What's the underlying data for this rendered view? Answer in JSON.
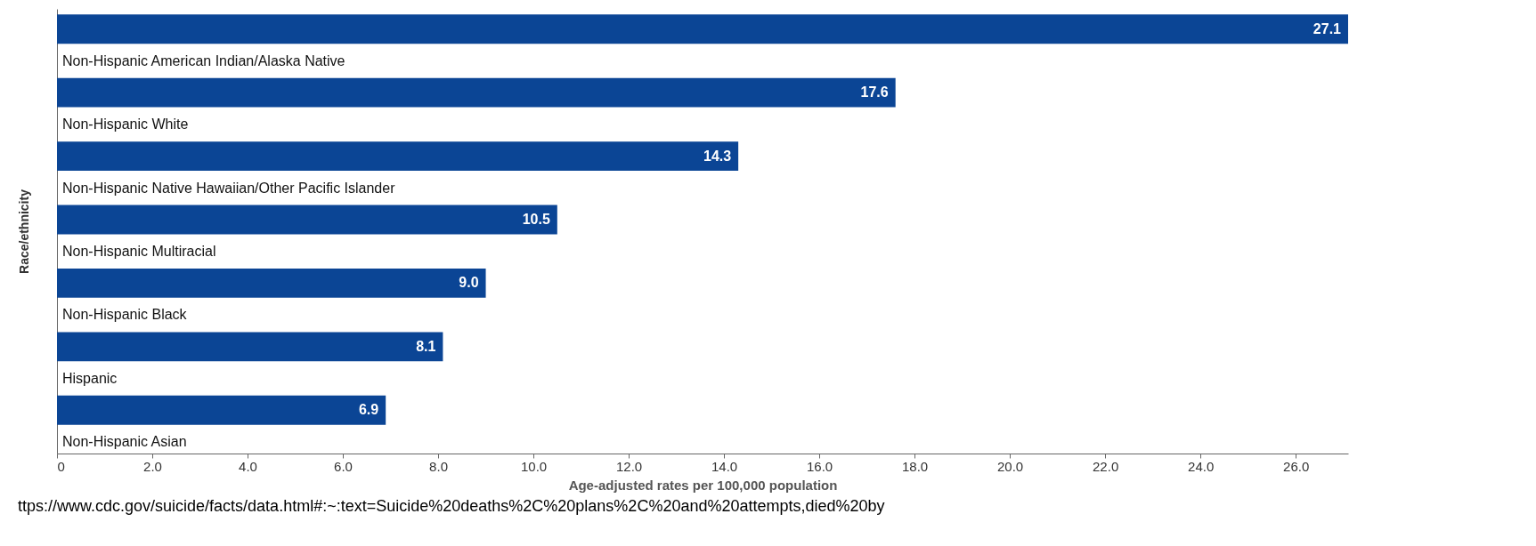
{
  "chart_data": {
    "type": "bar",
    "orientation": "horizontal",
    "categories": [
      "Non-Hispanic American Indian/Alaska Native",
      "Non-Hispanic White",
      "Non-Hispanic Native Hawaiian/Other Pacific Islander",
      "Non-Hispanic Multiracial",
      "Non-Hispanic Black",
      "Hispanic",
      "Non-Hispanic Asian"
    ],
    "values": [
      27.1,
      17.6,
      14.3,
      10.5,
      9.0,
      8.1,
      6.9
    ],
    "value_labels": [
      "27.1",
      "17.6",
      "14.3",
      "10.5",
      "9.0",
      "8.1",
      "6.9"
    ],
    "color": "#0b4595",
    "xlabel": "Age-adjusted rates per 100,000 population",
    "ylabel": "Race/ethnicity",
    "xlim": [
      0,
      27.1
    ],
    "xticks": [
      0,
      {
        "value": 2,
        "label": "2.0"
      },
      {
        "value": 4,
        "label": "4.0"
      },
      {
        "value": 6,
        "label": "6.0"
      },
      {
        "value": 8,
        "label": "8.0"
      },
      {
        "value": 10,
        "label": "10.0"
      },
      {
        "value": 12,
        "label": "12.0"
      },
      {
        "value": 14,
        "label": "14.0"
      },
      {
        "value": 16,
        "label": "16.0"
      },
      {
        "value": 18,
        "label": "18.0"
      },
      {
        "value": 20,
        "label": "20.0"
      },
      {
        "value": 22,
        "label": "22.0"
      },
      {
        "value": 24,
        "label": "24.0"
      },
      {
        "value": 26,
        "label": "26.0"
      }
    ],
    "annotations": [
      "ttps://www.cdc.gov/suicide/facts/data.html#:~:text=Suicide%20deaths%2C%20plans%2C%20and%20attempts,died%20by"
    ],
    "grid": false
  }
}
